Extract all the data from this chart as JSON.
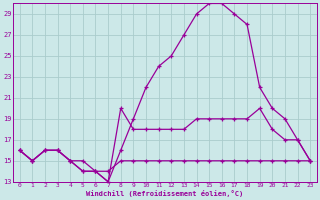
{
  "xlabel": "Windchill (Refroidissement éolien,°C)",
  "bg_color": "#cce8e8",
  "grid_color": "#aacccc",
  "line_color": "#990099",
  "xlim": [
    -0.5,
    23.5
  ],
  "ylim": [
    13,
    30
  ],
  "xticks": [
    0,
    1,
    2,
    3,
    4,
    5,
    6,
    7,
    8,
    9,
    10,
    11,
    12,
    13,
    14,
    15,
    16,
    17,
    18,
    19,
    20,
    21,
    22,
    23
  ],
  "yticks": [
    13,
    15,
    17,
    19,
    21,
    23,
    25,
    27,
    29
  ],
  "line1_x": [
    0,
    1,
    2,
    3,
    4,
    5,
    6,
    7,
    8,
    9,
    10,
    11,
    12,
    13,
    14,
    15,
    16,
    17,
    18,
    19,
    20,
    21,
    22,
    23
  ],
  "line1_y": [
    16,
    15,
    16,
    16,
    15,
    15,
    14,
    14,
    15,
    15,
    15,
    15,
    15,
    15,
    15,
    15,
    15,
    15,
    15,
    15,
    15,
    15,
    15,
    15
  ],
  "line2_x": [
    0,
    1,
    2,
    3,
    4,
    5,
    6,
    7,
    8,
    9,
    10,
    11,
    12,
    13,
    14,
    15,
    16,
    17,
    18,
    19,
    20,
    21,
    22,
    23
  ],
  "line2_y": [
    16,
    15,
    16,
    16,
    15,
    14,
    14,
    13,
    16,
    19,
    22,
    24,
    25,
    27,
    29,
    30,
    30,
    29,
    28,
    22,
    20,
    19,
    17,
    15
  ],
  "line3_x": [
    0,
    1,
    2,
    3,
    4,
    5,
    6,
    7,
    8,
    9,
    10,
    11,
    12,
    13,
    14,
    15,
    16,
    17,
    18,
    19,
    20,
    21,
    22,
    23
  ],
  "line3_y": [
    16,
    15,
    16,
    16,
    15,
    14,
    14,
    13,
    20,
    18,
    18,
    18,
    18,
    18,
    19,
    19,
    19,
    19,
    19,
    20,
    18,
    17,
    17,
    15
  ]
}
